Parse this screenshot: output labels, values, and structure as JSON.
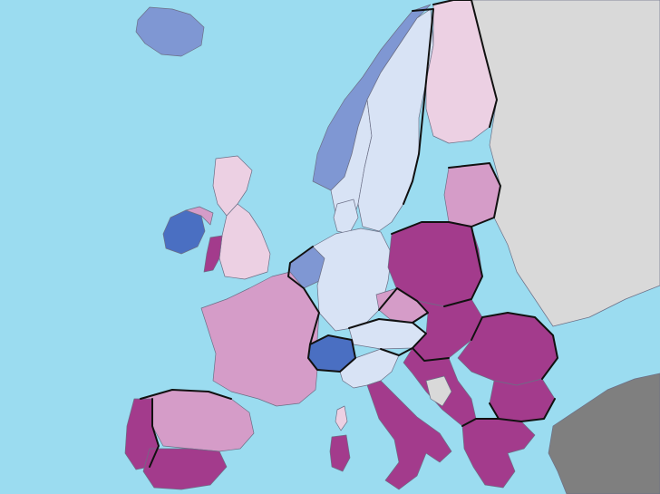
{
  "map": {
    "palette": {
      "sea": "#9bdcf0",
      "non_eu_land": "#d9d9d9",
      "no_data": "#7f7f7f",
      "deep_blue": "#4a6fc2",
      "mid_blue": "#7f97d3",
      "light_blue": "#d8e3f5",
      "light_pink": "#ecd0e3",
      "mid_pink": "#d59cc8",
      "magenta": "#a33b8c"
    },
    "regions": [
      {
        "id": "iceland",
        "fill": "mid_blue"
      },
      {
        "id": "ireland",
        "fill": "deep_blue"
      },
      {
        "id": "northern-ireland",
        "fill": "mid_pink"
      },
      {
        "id": "scotland",
        "fill": "light_pink"
      },
      {
        "id": "england",
        "fill": "light_pink"
      },
      {
        "id": "wales",
        "fill": "magenta"
      },
      {
        "id": "norway-coast",
        "fill": "mid_blue"
      },
      {
        "id": "norway-interior",
        "fill": "light_blue"
      },
      {
        "id": "sweden",
        "fill": "light_blue"
      },
      {
        "id": "finland",
        "fill": "light_pink"
      },
      {
        "id": "baltics",
        "fill": "mid_pink"
      },
      {
        "id": "denmark",
        "fill": "light_blue"
      },
      {
        "id": "benelux",
        "fill": "mid_blue"
      },
      {
        "id": "germany",
        "fill": "light_blue"
      },
      {
        "id": "poland",
        "fill": "magenta"
      },
      {
        "id": "czechia",
        "fill": "mid_pink"
      },
      {
        "id": "austria",
        "fill": "light_blue"
      },
      {
        "id": "switzerland",
        "fill": "deep_blue"
      },
      {
        "id": "france",
        "fill": "mid_pink"
      },
      {
        "id": "iberia-west",
        "fill": "magenta"
      },
      {
        "id": "spain",
        "fill": "mid_pink"
      },
      {
        "id": "andalusia",
        "fill": "magenta"
      },
      {
        "id": "italy-north",
        "fill": "light_blue"
      },
      {
        "id": "italy-south",
        "fill": "magenta"
      },
      {
        "id": "sardinia",
        "fill": "magenta"
      },
      {
        "id": "corsica",
        "fill": "light_pink"
      },
      {
        "id": "slovakia-hungary",
        "fill": "magenta"
      },
      {
        "id": "romania",
        "fill": "magenta"
      },
      {
        "id": "bulgaria",
        "fill": "magenta"
      },
      {
        "id": "balkans",
        "fill": "magenta"
      },
      {
        "id": "greece",
        "fill": "magenta"
      },
      {
        "id": "bosnia",
        "fill": "non_eu_land"
      },
      {
        "id": "turkey",
        "fill": "no_data"
      },
      {
        "id": "russia-belarus-ukraine",
        "fill": "non_eu_land"
      }
    ]
  }
}
